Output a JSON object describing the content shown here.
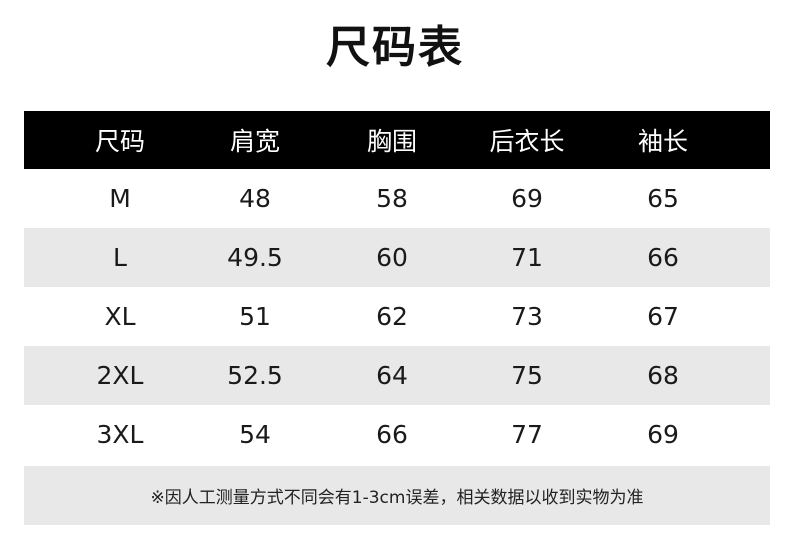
{
  "title": "尺码表",
  "headers": [
    "尺码",
    "肩宽",
    "胸围",
    "后衣长",
    "袖长"
  ],
  "rows": [
    [
      "M",
      "48",
      "58",
      "69",
      "65"
    ],
    [
      "L",
      "49.5",
      "60",
      "71",
      "66"
    ],
    [
      "XL",
      "51",
      "62",
      "73",
      "67"
    ],
    [
      "2XL",
      "52.5",
      "64",
      "75",
      "68"
    ],
    [
      "3XL",
      "54",
      "66",
      "77",
      "69"
    ]
  ],
  "note": "※因人工测量方式不同会有1-3cm误差，相关数据以收到实物为准",
  "colors": {
    "header_bg": "#000000",
    "stripe": "#e8e8e8"
  }
}
